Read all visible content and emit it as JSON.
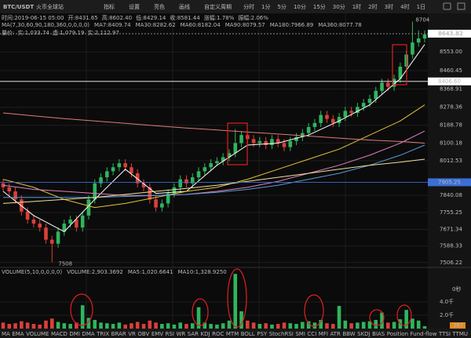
{
  "toolbar": {
    "pair": "BTC/USDT",
    "exchange": "火币全球站",
    "tools": [
      "指标",
      "设置",
      "亮色",
      "画线",
      "自定义周期"
    ],
    "periods": [
      "分时",
      "1分",
      "5分",
      "10分",
      "15分",
      "30分",
      "1时",
      "2时",
      "3时",
      "4时",
      "1日"
    ],
    "active_period": 6
  },
  "info": {
    "bar": [
      "时间:2019-06-15 05:00",
      "开:8431.65",
      "高:8602.40",
      "低:8429.14",
      "收:8581.44",
      "涨幅:1.78%",
      "振幅:2.06%"
    ],
    "ma_params": "MA(7,30,60,90,180,360,0,0,0,0)",
    "volume_price": [
      "量价:",
      "实:1,033.74",
      "虚:1,079.19",
      "实:2,112.97"
    ]
  },
  "chart_data": {
    "type": "candlestick",
    "up_color": "#2fb55d",
    "down_color": "#d9403a",
    "ylim": [
      7486,
      8780
    ],
    "yticks": [
      {
        "value": 8553,
        "label": "8553.00"
      },
      8460.45,
      8368.91,
      8278.36,
      8188.78,
      8100.18,
      8012.53,
      7840.08,
      7755.25,
      7671.34,
      7588.33,
      7506.22
    ],
    "last_price": 8643.82,
    "marker_lines": [
      {
        "value": 8406.6,
        "label": "8406.60",
        "color": "#ffffff"
      },
      {
        "value": 7905.25,
        "color": "#3b6fd6"
      }
    ],
    "candles": [
      [
        7900,
        7920,
        7860,
        7880
      ],
      [
        7880,
        7900,
        7840,
        7860
      ],
      [
        7860,
        7880,
        7800,
        7820
      ],
      [
        7820,
        7840,
        7740,
        7760
      ],
      [
        7760,
        7780,
        7700,
        7720
      ],
      [
        7720,
        7740,
        7680,
        7700
      ],
      [
        7700,
        7720,
        7660,
        7680
      ],
      [
        7680,
        7700,
        7600,
        7620
      ],
      [
        7620,
        7640,
        7508,
        7600
      ],
      [
        7600,
        7680,
        7580,
        7660
      ],
      [
        7660,
        7720,
        7640,
        7700
      ],
      [
        7700,
        7740,
        7680,
        7720
      ],
      [
        7720,
        7740,
        7660,
        7680
      ],
      [
        7680,
        7760,
        7660,
        7740
      ],
      [
        7740,
        7840,
        7720,
        7820
      ],
      [
        7820,
        7920,
        7800,
        7900
      ],
      [
        7900,
        7950,
        7880,
        7930
      ],
      [
        7930,
        7980,
        7910,
        7960
      ],
      [
        7960,
        8000,
        7940,
        7980
      ],
      [
        7980,
        8020,
        7960,
        8000
      ],
      [
        8000,
        8020,
        7960,
        7980
      ],
      [
        7980,
        8000,
        7930,
        7950
      ],
      [
        7950,
        7970,
        7880,
        7900
      ],
      [
        7900,
        7920,
        7860,
        7880
      ],
      [
        7880,
        7900,
        7800,
        7820
      ],
      [
        7820,
        7840,
        7760,
        7780
      ],
      [
        7780,
        7820,
        7760,
        7800
      ],
      [
        7800,
        7870,
        7780,
        7850
      ],
      [
        7850,
        7900,
        7830,
        7880
      ],
      [
        7880,
        7940,
        7860,
        7920
      ],
      [
        7920,
        7940,
        7880,
        7900
      ],
      [
        7900,
        7950,
        7880,
        7930
      ],
      [
        7930,
        7980,
        7910,
        7960
      ],
      [
        7960,
        8000,
        7940,
        7980
      ],
      [
        7980,
        8020,
        7960,
        8000
      ],
      [
        8000,
        8030,
        7990,
        8010
      ],
      [
        8010,
        8050,
        7990,
        8030
      ],
      [
        8030,
        8070,
        8010,
        8050
      ],
      [
        8050,
        8170,
        8030,
        8100
      ],
      [
        8100,
        8160,
        8080,
        8140
      ],
      [
        8140,
        8160,
        8100,
        8120
      ],
      [
        8120,
        8140,
        8080,
        8100
      ],
      [
        8100,
        8130,
        8080,
        8110
      ],
      [
        8110,
        8130,
        8070,
        8090
      ],
      [
        8090,
        8140,
        8070,
        8120
      ],
      [
        8120,
        8140,
        8080,
        8100
      ],
      [
        8100,
        8120,
        8060,
        8080
      ],
      [
        8080,
        8130,
        8060,
        8110
      ],
      [
        8110,
        8150,
        8090,
        8130
      ],
      [
        8130,
        8170,
        8110,
        8150
      ],
      [
        8150,
        8200,
        8130,
        8180
      ],
      [
        8180,
        8220,
        8160,
        8200
      ],
      [
        8200,
        8260,
        8180,
        8240
      ],
      [
        8240,
        8260,
        8200,
        8220
      ],
      [
        8220,
        8240,
        8180,
        8200
      ],
      [
        8200,
        8250,
        8180,
        8230
      ],
      [
        8230,
        8280,
        8210,
        8260
      ],
      [
        8260,
        8280,
        8230,
        8250
      ],
      [
        8250,
        8300,
        8230,
        8280
      ],
      [
        8280,
        8320,
        8260,
        8300
      ],
      [
        8300,
        8340,
        8280,
        8320
      ],
      [
        8320,
        8380,
        8300,
        8360
      ],
      [
        8360,
        8420,
        8340,
        8400
      ],
      [
        8400,
        8420,
        8360,
        8380
      ],
      [
        8380,
        8440,
        8360,
        8420
      ],
      [
        8420,
        8500,
        8400,
        8480
      ],
      [
        8480,
        8560,
        8460,
        8540
      ],
      [
        8540,
        8704,
        8520,
        8600
      ],
      [
        8600,
        8660,
        8580,
        8620
      ],
      [
        8620,
        8660,
        8600,
        8640
      ]
    ],
    "high_index": 67,
    "low_index": 8,
    "ma": {
      "x": [
        0,
        5,
        10,
        15,
        20,
        25,
        30,
        35,
        40,
        45,
        50,
        55,
        60,
        65,
        69
      ],
      "series": [
        {
          "name": "MA7:8409.74",
          "color": "#ffffff",
          "values": [
            7860,
            7740,
            7660,
            7820,
            7970,
            7850,
            7860,
            7990,
            8090,
            8100,
            8140,
            8210,
            8290,
            8420,
            8590
          ]
        },
        {
          "name": "MA30:8282.62",
          "color": "#e6c43c",
          "values": [
            7920,
            7880,
            7820,
            7780,
            7800,
            7830,
            7860,
            7880,
            7920,
            7970,
            8020,
            8070,
            8140,
            8210,
            8290
          ]
        },
        {
          "name": "MA60:8182.04",
          "color": "#e080c0",
          "values": [
            7890,
            7870,
            7860,
            7850,
            7840,
            7840,
            7845,
            7860,
            7880,
            7910,
            7950,
            7990,
            8040,
            8100,
            8160
          ]
        },
        {
          "name": "MA90:8079.57",
          "color": "#5b9bd5",
          "values": [
            7830,
            7830,
            7830,
            7830,
            7835,
            7840,
            7845,
            7855,
            7870,
            7890,
            7920,
            7950,
            7990,
            8040,
            8090
          ]
        },
        {
          "name": "MA180:7966.89",
          "color": "#f0e0a0",
          "values": [
            7800,
            7810,
            7820,
            7830,
            7845,
            7860,
            7875,
            7890,
            7910,
            7930,
            7950,
            7970,
            7990,
            8005,
            8020
          ]
        },
        {
          "name": "MA360:8077.78",
          "color": "#e07a7a",
          "values": [
            8250,
            8235,
            8222,
            8210,
            8198,
            8186,
            8175,
            8165,
            8155,
            8145,
            8135,
            8125,
            8115,
            8108,
            8100
          ]
        }
      ]
    },
    "volume": {
      "title": "VOLUME(5,10,0,0,0,0)",
      "info": [
        "VOLUME:2,903.3692",
        "MA5:1,020.6641",
        "MA10:1,328.9250"
      ],
      "ylim": [
        0,
        8700
      ],
      "yticks": [
        {
          "value": 2000,
          "label": "2.0千"
        },
        {
          "value": 4000,
          "label": "4.0千"
        }
      ],
      "countdown": "0秒",
      "values": [
        900,
        700,
        800,
        1100,
        900,
        700,
        600,
        1200,
        1500,
        1000,
        800,
        700,
        900,
        3500,
        1600,
        1300,
        900,
        800,
        700,
        900,
        600,
        800,
        1000,
        700,
        1200,
        900,
        700,
        800,
        600,
        900,
        700,
        800,
        3200,
        900,
        700,
        600,
        800,
        1200,
        8200,
        2600,
        1200,
        900,
        700,
        800,
        600,
        700,
        900,
        800,
        700,
        1000,
        1100,
        900,
        1300,
        800,
        700,
        3400,
        1200,
        800,
        900,
        1000,
        1100,
        1300,
        2400,
        900,
        1000,
        1400,
        2800,
        1500,
        1200,
        367
      ]
    }
  },
  "indicator_tabs": {
    "items": [
      "MA",
      "EMA",
      "VOLUME",
      "MACD",
      "DMI",
      "DMA",
      "TRIX",
      "BRAR",
      "VR",
      "OBV",
      "EMV",
      "RSI",
      "WR",
      "SAR",
      "KDJ",
      "ROC",
      "MTM",
      "BOLL",
      "PSY",
      "StochRSI",
      "SMI",
      "CCI",
      "MFI",
      "ATR",
      "BBW",
      "SKDJ",
      "BIAS",
      "Position",
      "Fund-flow",
      "TTSI",
      "TTMU"
    ],
    "active": 2
  }
}
